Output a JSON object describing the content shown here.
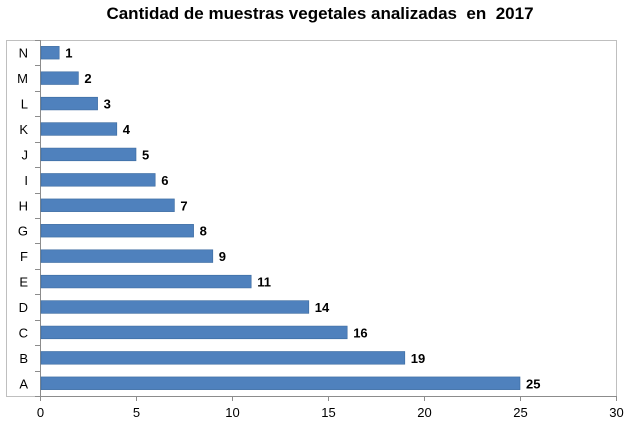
{
  "chart_data": {
    "type": "bar",
    "orientation": "horizontal",
    "title": "Cantidad de muestras vegetales analizadas  en  2017",
    "xlabel": "",
    "ylabel": "",
    "categories": [
      "A",
      "B",
      "C",
      "D",
      "E",
      "F",
      "G",
      "H",
      "I",
      "J",
      "K",
      "L",
      "M",
      "N"
    ],
    "values": [
      25,
      19,
      16,
      14,
      11,
      9,
      8,
      7,
      6,
      5,
      4,
      3,
      2,
      1
    ],
    "data_labels": [
      "25",
      "19",
      "16",
      "14",
      "11",
      "9",
      "8",
      "7",
      "6",
      "5",
      "4",
      "3",
      "2",
      "1"
    ],
    "xlim": [
      0,
      30
    ],
    "x_ticks": [
      0,
      5,
      10,
      15,
      20,
      25,
      30
    ],
    "x_tick_labels": [
      "0",
      "5",
      "10",
      "15",
      "20",
      "25",
      "30"
    ],
    "grid": false,
    "legend": "none",
    "bar_color": "#4F81BD",
    "bar_edge_color": "#3B6A9F",
    "frame_color": "#BFBFBF"
  }
}
